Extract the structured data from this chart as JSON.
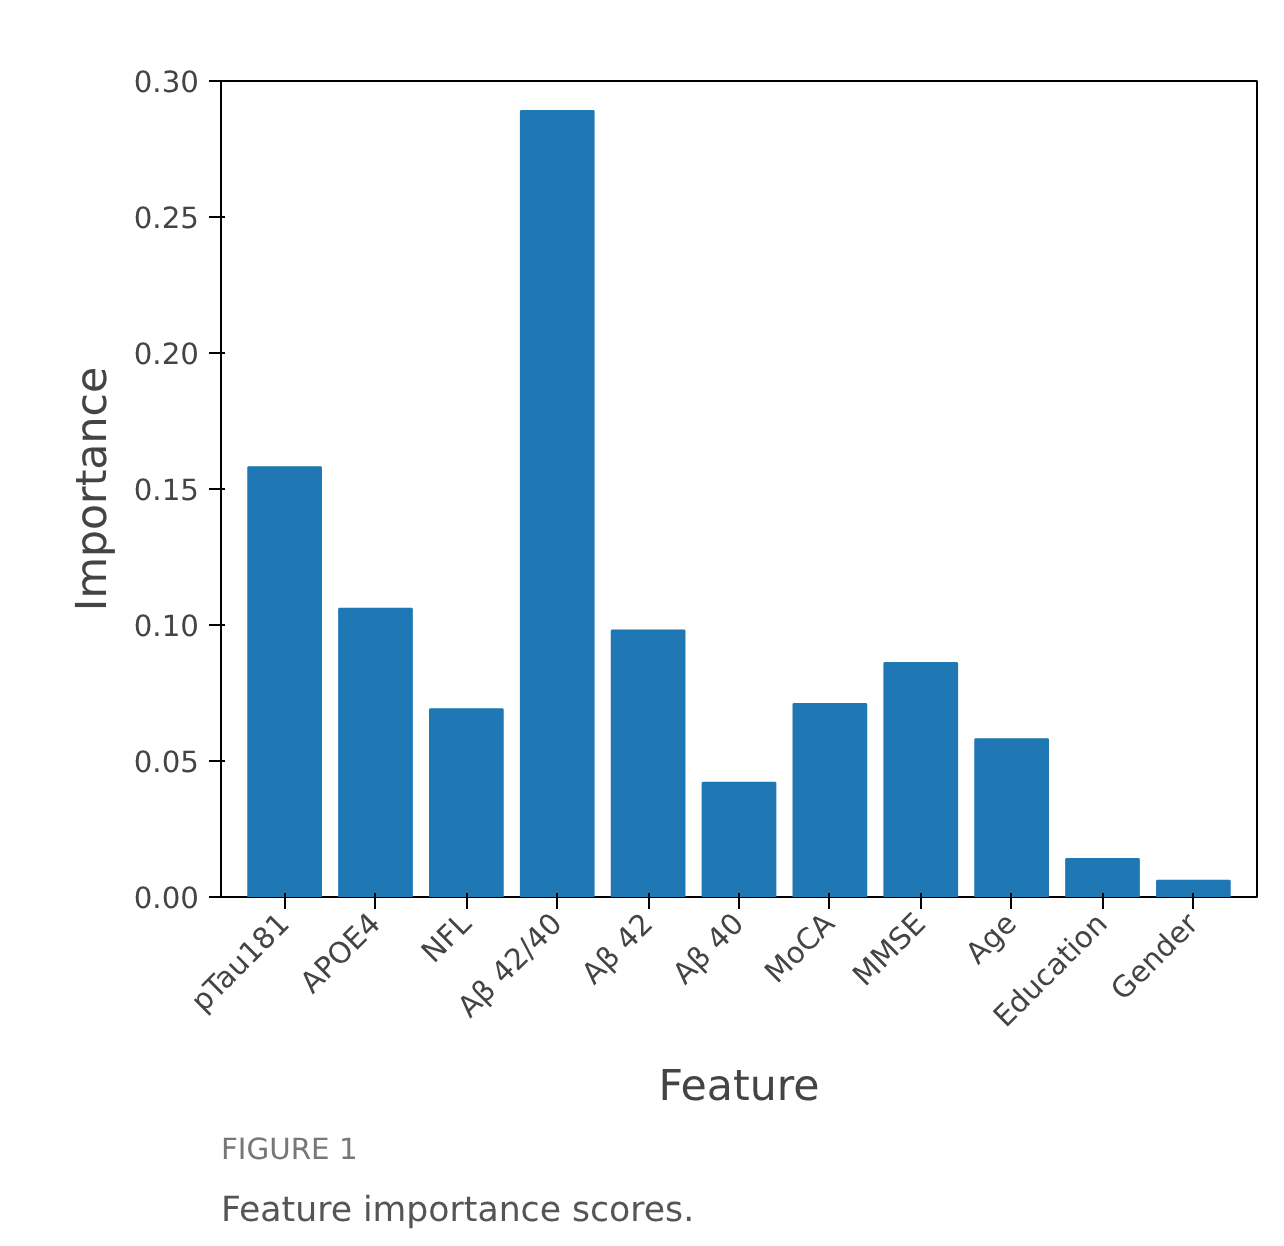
{
  "chart_data": {
    "type": "bar",
    "xlabel": "Feature",
    "ylabel": "Importance",
    "categories": [
      "pTau181",
      "APOE4",
      "NFL",
      "Aβ 42/40",
      "Aβ 42",
      "Aβ 40",
      "MoCA",
      "MMSE",
      "Age",
      "Education",
      "Gender"
    ],
    "values": [
      0.158,
      0.106,
      0.069,
      0.289,
      0.098,
      0.042,
      0.071,
      0.086,
      0.058,
      0.014,
      0.006
    ],
    "color": "#1f77b4",
    "ylim": [
      0,
      0.3
    ],
    "yticks": [
      {
        "value": 0,
        "label": "0.00"
      },
      {
        "value": 0.05,
        "label": "0.05"
      },
      {
        "value": 0.1,
        "label": "0.10"
      },
      {
        "value": 0.15,
        "label": "0.15"
      },
      {
        "value": 0.2,
        "label": "0.20"
      },
      {
        "value": 0.25,
        "label": "0.25"
      },
      {
        "value": 0.3,
        "label": "0.30"
      }
    ],
    "grid": false,
    "annotations": [
      "FIGURE 1",
      "Feature importance scores."
    ]
  }
}
